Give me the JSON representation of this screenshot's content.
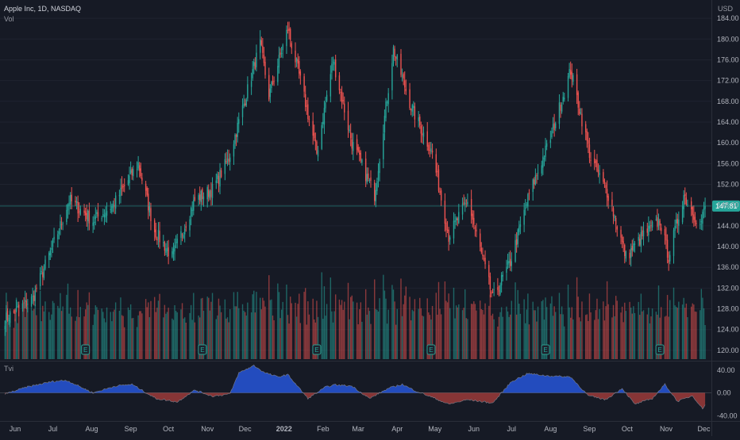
{
  "header": {
    "symbol_line": "Apple Inc, 1D, NASDAQ",
    "volume_label": "Vol",
    "currency": "USD",
    "indicator_label": "Tvi"
  },
  "colors": {
    "background": "#161a25",
    "up": "#26a69a",
    "down": "#ef5350",
    "indicator_positive": "#2962ff",
    "indicator_negative": "#b8413d",
    "price_line": "#26a69a",
    "grid": "#1f2330",
    "axis_text": "#b2b5be"
  },
  "chart_data": [
    {
      "type": "candlestick",
      "symbol": "Apple Inc",
      "interval": "1D",
      "exchange": "NASDAQ",
      "currency": "USD",
      "ylim": [
        118,
        186
      ],
      "y_ticks": [
        "120.00",
        "124.00",
        "128.00",
        "132.00",
        "136.00",
        "140.00",
        "144.00",
        "148.00",
        "152.00",
        "156.00",
        "160.00",
        "164.00",
        "168.00",
        "172.00",
        "176.00",
        "180.00",
        "184.00"
      ],
      "x_ticks": [
        "Jun",
        "Jul",
        "Aug",
        "Sep",
        "Oct",
        "Nov",
        "Dec",
        "2022",
        "Feb",
        "Mar",
        "Apr",
        "May",
        "Jun",
        "Jul",
        "Aug",
        "Sep",
        "Oct",
        "Nov",
        "Dec"
      ],
      "last_price": 147.81,
      "last_price_label": "147.81",
      "earnings_markers": [
        "E",
        "E",
        "E",
        "E",
        "E",
        "E"
      ],
      "close_anchors": [
        {
          "date": "2021-05-24",
          "close": 126
        },
        {
          "date": "2021-06-15",
          "close": 130
        },
        {
          "date": "2021-07-07",
          "close": 144
        },
        {
          "date": "2021-07-14",
          "close": 149
        },
        {
          "date": "2021-08-02",
          "close": 145
        },
        {
          "date": "2021-08-18",
          "close": 148
        },
        {
          "date": "2021-09-07",
          "close": 156
        },
        {
          "date": "2021-09-20",
          "close": 143
        },
        {
          "date": "2021-10-04",
          "close": 138
        },
        {
          "date": "2021-10-22",
          "close": 149
        },
        {
          "date": "2021-11-05",
          "close": 151
        },
        {
          "date": "2021-11-18",
          "close": 157
        },
        {
          "date": "2021-12-13",
          "close": 179
        },
        {
          "date": "2021-12-20",
          "close": 169
        },
        {
          "date": "2022-01-04",
          "close": 182
        },
        {
          "date": "2022-01-14",
          "close": 172
        },
        {
          "date": "2022-01-27",
          "close": 158
        },
        {
          "date": "2022-02-09",
          "close": 176
        },
        {
          "date": "2022-02-24",
          "close": 160
        },
        {
          "date": "2022-03-14",
          "close": 150
        },
        {
          "date": "2022-03-29",
          "close": 178
        },
        {
          "date": "2022-04-12",
          "close": 167
        },
        {
          "date": "2022-04-29",
          "close": 158
        },
        {
          "date": "2022-05-12",
          "close": 142
        },
        {
          "date": "2022-05-27",
          "close": 149
        },
        {
          "date": "2022-06-16",
          "close": 130
        },
        {
          "date": "2022-06-30",
          "close": 137
        },
        {
          "date": "2022-07-15",
          "close": 150
        },
        {
          "date": "2022-08-01",
          "close": 161
        },
        {
          "date": "2022-08-17",
          "close": 174
        },
        {
          "date": "2022-09-02",
          "close": 157
        },
        {
          "date": "2022-09-16",
          "close": 150
        },
        {
          "date": "2022-09-30",
          "close": 138
        },
        {
          "date": "2022-10-13",
          "close": 142
        },
        {
          "date": "2022-10-27",
          "close": 145
        },
        {
          "date": "2022-11-03",
          "close": 138
        },
        {
          "date": "2022-11-15",
          "close": 150
        },
        {
          "date": "2022-11-28",
          "close": 144
        },
        {
          "date": "2022-12-02",
          "close": 147.81
        }
      ]
    },
    {
      "type": "bar",
      "name": "Vol"
    },
    {
      "type": "area",
      "name": "Tvi",
      "ylim": [
        -48,
        55
      ],
      "y_ticks": [
        "40.00",
        "0.00",
        "-40.00"
      ],
      "points": [
        {
          "date": "2021-05-24",
          "value": -2
        },
        {
          "date": "2021-06-10",
          "value": 10
        },
        {
          "date": "2021-07-01",
          "value": 20
        },
        {
          "date": "2021-07-12",
          "value": 22
        },
        {
          "date": "2021-08-02",
          "value": 0
        },
        {
          "date": "2021-08-20",
          "value": 12
        },
        {
          "date": "2021-09-02",
          "value": 15
        },
        {
          "date": "2021-09-21",
          "value": -10
        },
        {
          "date": "2021-10-08",
          "value": -16
        },
        {
          "date": "2021-10-22",
          "value": 5
        },
        {
          "date": "2021-11-05",
          "value": -6
        },
        {
          "date": "2021-11-19",
          "value": -2
        },
        {
          "date": "2021-11-26",
          "value": 35
        },
        {
          "date": "2021-12-08",
          "value": 48
        },
        {
          "date": "2021-12-16",
          "value": 36
        },
        {
          "date": "2021-12-27",
          "value": 28
        },
        {
          "date": "2022-01-04",
          "value": 32
        },
        {
          "date": "2022-01-20",
          "value": -10
        },
        {
          "date": "2022-02-03",
          "value": 10
        },
        {
          "date": "2022-02-10",
          "value": 14
        },
        {
          "date": "2022-02-24",
          "value": 12
        },
        {
          "date": "2022-03-10",
          "value": -10
        },
        {
          "date": "2022-03-25",
          "value": 8
        },
        {
          "date": "2022-04-05",
          "value": 15
        },
        {
          "date": "2022-04-14",
          "value": 5
        },
        {
          "date": "2022-04-29",
          "value": -8
        },
        {
          "date": "2022-05-12",
          "value": -20
        },
        {
          "date": "2022-05-27",
          "value": -12
        },
        {
          "date": "2022-06-16",
          "value": -18
        },
        {
          "date": "2022-07-01",
          "value": 20
        },
        {
          "date": "2022-07-14",
          "value": 34
        },
        {
          "date": "2022-07-29",
          "value": 30
        },
        {
          "date": "2022-08-17",
          "value": 28
        },
        {
          "date": "2022-08-31",
          "value": -5
        },
        {
          "date": "2022-09-14",
          "value": -12
        },
        {
          "date": "2022-09-27",
          "value": 8
        },
        {
          "date": "2022-10-07",
          "value": -20
        },
        {
          "date": "2022-10-21",
          "value": -10
        },
        {
          "date": "2022-10-31",
          "value": 15
        },
        {
          "date": "2022-11-10",
          "value": -15
        },
        {
          "date": "2022-11-22",
          "value": -5
        },
        {
          "date": "2022-11-30",
          "value": -28
        },
        {
          "date": "2022-12-02",
          "value": -20
        }
      ]
    }
  ]
}
